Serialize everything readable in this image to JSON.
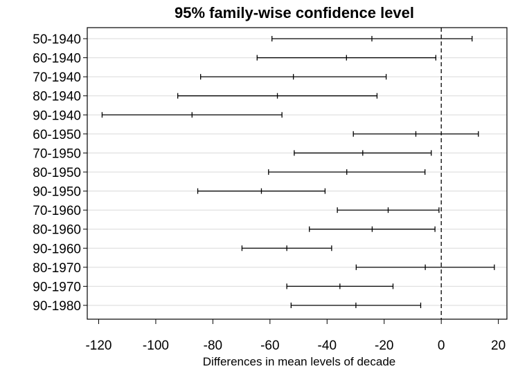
{
  "chart_data": {
    "type": "errorbar",
    "title": "95% family-wise confidence level",
    "xlabel": "Differences in mean levels of decade",
    "ylabel": "",
    "xlim": [
      -124,
      23
    ],
    "xticks": [
      -120,
      -100,
      -80,
      -60,
      -40,
      -20,
      0,
      20
    ],
    "xtick_labels": [
      "-120",
      "-100",
      "-80",
      "-60",
      "-40",
      "-20",
      "0",
      "20"
    ],
    "reference_line": 0,
    "grid": "horizontal",
    "comparisons": [
      {
        "label": "50-1940",
        "diff": -24.3,
        "lwr": -59.3,
        "upr": 10.8
      },
      {
        "label": "60-1940",
        "diff": -33.2,
        "lwr": -64.5,
        "upr": -1.9
      },
      {
        "label": "70-1940",
        "diff": -51.8,
        "lwr": -84.3,
        "upr": -19.3
      },
      {
        "label": "80-1940",
        "diff": -57.4,
        "lwr": -92.3,
        "upr": -22.5
      },
      {
        "label": "90-1940",
        "diff": -87.3,
        "lwr": -118.8,
        "upr": -55.8
      },
      {
        "label": "60-1950",
        "diff": -8.9,
        "lwr": -30.8,
        "upr": 13.0
      },
      {
        "label": "70-1950",
        "diff": -27.5,
        "lwr": -51.5,
        "upr": -3.5
      },
      {
        "label": "80-1950",
        "diff": -33.1,
        "lwr": -60.5,
        "upr": -5.7
      },
      {
        "label": "90-1950",
        "diff": -63.0,
        "lwr": -85.3,
        "upr": -40.7
      },
      {
        "label": "70-1960",
        "diff": -18.6,
        "lwr": -36.4,
        "upr": -0.8
      },
      {
        "label": "80-1960",
        "diff": -24.2,
        "lwr": -46.2,
        "upr": -2.2
      },
      {
        "label": "90-1960",
        "diff": -54.1,
        "lwr": -69.8,
        "upr": -38.4
      },
      {
        "label": "80-1970",
        "diff": -5.6,
        "lwr": -29.8,
        "upr": 18.6
      },
      {
        "label": "90-1970",
        "diff": -35.5,
        "lwr": -54.1,
        "upr": -16.9
      },
      {
        "label": "90-1980",
        "diff": -29.9,
        "lwr": -52.6,
        "upr": -7.2
      }
    ]
  }
}
